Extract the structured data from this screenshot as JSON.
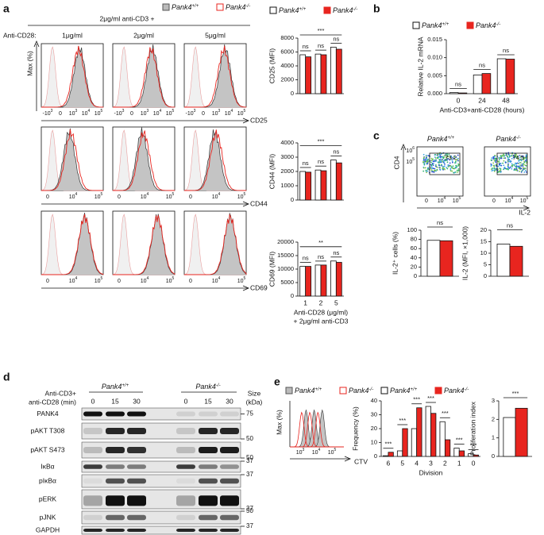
{
  "genotype": {
    "name": "Pank4",
    "wt": "+/+",
    "ko": "-/-"
  },
  "a": {
    "label": "a",
    "stim": "2μg/ml anti-CD3 +",
    "row_label": "Anti-CD28:",
    "doses": [
      "1μg/ml",
      "2μg/ml",
      "5μg/ml"
    ],
    "hist_ylabel": "Max (%)",
    "markers": [
      "CD25",
      "CD44",
      "CD69"
    ],
    "hist_ticks": [
      [
        {
          "base": "-10",
          "exp": "3"
        },
        "0",
        {
          "base": "10",
          "exp": "3"
        },
        {
          "base": "10",
          "exp": "4"
        },
        {
          "base": "10",
          "exp": "5"
        }
      ],
      [
        "0",
        {
          "base": "10",
          "exp": "4"
        },
        {
          "base": "10",
          "exp": "5"
        }
      ],
      [
        "0",
        {
          "base": "10",
          "exp": "4"
        },
        {
          "base": "10",
          "exp": "5"
        }
      ]
    ],
    "charts": [
      {
        "type": "bar",
        "ylabel": "CD25 (MFI)",
        "categories": [
          null,
          null,
          null
        ],
        "ylim": [
          0,
          8000
        ],
        "yticks": [
          0,
          2000,
          4000,
          6000,
          8000
        ],
        "series": [
          {
            "color": "#ffffff",
            "values": [
              5600,
              5700,
              6700
            ]
          },
          {
            "color": "#e8251f",
            "values": [
              5300,
              5600,
              6400
            ]
          }
        ],
        "sig": [
          "ns",
          "ns",
          "ns"
        ],
        "bracket": "***"
      },
      {
        "type": "bar",
        "ylabel": "CD44 (MFI)",
        "categories": [
          null,
          null,
          null
        ],
        "ylim": [
          0,
          4000
        ],
        "yticks": [
          0,
          1000,
          2000,
          3000,
          4000
        ],
        "series": [
          {
            "color": "#ffffff",
            "values": [
              2000,
              2100,
              2800
            ]
          },
          {
            "color": "#e8251f",
            "values": [
              1950,
              2050,
              2600
            ]
          }
        ],
        "sig": [
          "ns",
          "ns",
          "ns"
        ],
        "bracket": "***"
      },
      {
        "type": "bar",
        "ylabel": "CD69 (MFI)",
        "categories": [
          "1",
          "2",
          "5"
        ],
        "ylim": [
          0,
          20000
        ],
        "yticks": [
          0,
          5000,
          10000,
          15000,
          20000
        ],
        "series": [
          {
            "color": "#ffffff",
            "values": [
              11000,
              11500,
              13000
            ]
          },
          {
            "color": "#e8251f",
            "values": [
              11000,
              11500,
              12500
            ]
          }
        ],
        "sig": [
          "ns",
          "ns",
          "ns"
        ],
        "bracket": "**",
        "xlabel": "Anti-CD28 (μg/ml)",
        "xlabel2": "+ 2μg/ml anti-CD3"
      }
    ]
  },
  "b": {
    "label": "b",
    "charts": [
      {
        "type": "bar",
        "ylabel": "Relative IL-2 mRNA",
        "categories": [
          "0",
          "24",
          "48"
        ],
        "ylim": [
          0,
          0.015
        ],
        "yticks": [
          {
            "value": 0,
            "label": "0.000"
          },
          0.005,
          {
            "value": 0.01,
            "label": "0.010"
          },
          0.015
        ],
        "series": [
          {
            "color": "#ffffff",
            "values": [
              0.0003,
              0.0052,
              0.0097
            ]
          },
          {
            "color": "#e8251f",
            "values": [
              0.0002,
              0.0056,
              0.0096
            ]
          }
        ],
        "sig": [
          "ns",
          "ns",
          "ns"
        ],
        "xlabel": "Anti-CD3+anti-CD28 (hours)"
      }
    ]
  },
  "c": {
    "label": "c",
    "flow_ylabel": "CD4",
    "flow_xlabel": "IL-2",
    "percents": [
      73.2,
      74.5
    ],
    "flow_yticks": [
      {
        "base": "10",
        "exp": "6"
      },
      {
        "base": "10",
        "exp": "5"
      }
    ],
    "flow_xticks": [
      "0",
      {
        "base": "10",
        "exp": "4"
      },
      {
        "base": "10",
        "exp": "5"
      }
    ],
    "charts": [
      {
        "type": "bar",
        "ylabel": "IL-2⁺ cells (%)",
        "categories": [
          null
        ],
        "ylim": [
          0,
          100
        ],
        "yticks": [
          0,
          20,
          40,
          60,
          80,
          100
        ],
        "series": [
          {
            "color": "#ffffff",
            "values": [
              78
            ]
          },
          {
            "color": "#e8251f",
            "values": [
              77
            ]
          }
        ],
        "bracket": "ns"
      },
      {
        "type": "bar",
        "ylabel": "IL-2 (MFI, ×1,000)",
        "categories": [
          null
        ],
        "ylim": [
          0,
          20
        ],
        "yticks": [
          0,
          5,
          10,
          15,
          20
        ],
        "series": [
          {
            "color": "#ffffff",
            "values": [
              14
            ]
          },
          {
            "color": "#e8251f",
            "values": [
              13
            ]
          }
        ],
        "bracket": "ns"
      }
    ]
  },
  "d": {
    "label": "d",
    "stim1": "Anti-CD3+",
    "stim2": "anti-CD28 (min)",
    "times": [
      "0",
      "15",
      "30"
    ],
    "size1": "Size",
    "size2": "(kDa)",
    "rows": [
      "PANK4",
      "pAKT T308",
      "pAKT S473",
      "IκBα",
      "pIκBα",
      "pERK",
      "pJNK",
      "GAPDH"
    ],
    "size_markers": [
      75,
      50,
      50,
      37,
      37,
      37,
      50,
      37
    ]
  },
  "e": {
    "label": "e",
    "hist_ylabel": "Max (%)",
    "hist_xlabel": "CTV",
    "hist_ticks": [
      {
        "base": "10",
        "exp": "3"
      },
      {
        "base": "10",
        "exp": "4"
      },
      {
        "base": "10",
        "exp": "5"
      }
    ],
    "charts": [
      {
        "type": "bar",
        "ylabel": "Frequency (%)",
        "categories": [
          "6",
          "5",
          "4",
          "3",
          "2",
          "1",
          "0"
        ],
        "ylim": [
          0,
          40
        ],
        "yticks": [
          0,
          10,
          20,
          30,
          40
        ],
        "series": [
          {
            "color": "#ffffff",
            "values": [
              0.5,
              4,
              20,
              36,
              25,
              6,
              2
            ]
          },
          {
            "color": "#e8251f",
            "values": [
              3,
              20,
              35,
              31,
              12,
              4,
              1
            ]
          }
        ],
        "sig": [
          "***",
          "***",
          "***",
          "***",
          "***",
          "***",
          "***"
        ],
        "xlabel": "Division"
      },
      {
        "type": "bar",
        "ylabel": "Proliferation index",
        "categories": [
          null
        ],
        "ylim": [
          0,
          3
        ],
        "yticks": [
          0,
          1,
          2,
          3
        ],
        "series": [
          {
            "color": "#ffffff",
            "values": [
              2.1
            ]
          },
          {
            "color": "#e8251f",
            "values": [
              2.6
            ]
          }
        ],
        "bracket": "***"
      }
    ]
  }
}
